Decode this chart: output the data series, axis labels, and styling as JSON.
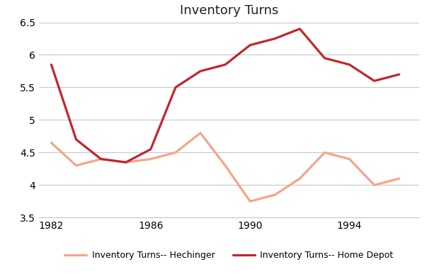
{
  "title": "Inventory Turns",
  "years": [
    1982,
    1983,
    1984,
    1985,
    1986,
    1987,
    1988,
    1989,
    1990,
    1991,
    1992,
    1993,
    1994,
    1995,
    1996
  ],
  "hechinger": [
    4.65,
    4.3,
    4.4,
    4.35,
    4.4,
    4.5,
    4.8,
    4.3,
    3.75,
    3.85,
    4.1,
    4.5,
    4.4,
    4.0,
    4.1
  ],
  "homedepot": [
    5.85,
    4.7,
    4.4,
    4.35,
    4.55,
    5.5,
    5.75,
    5.85,
    6.15,
    6.25,
    6.4,
    5.95,
    5.85,
    5.6,
    5.7
  ],
  "hechinger_color": "#f4a58a",
  "homedepot_color": "#c0272d",
  "background_color": "#ffffff",
  "grid_color": "#c8c8c8",
  "ylim": [
    3.5,
    6.5
  ],
  "yticks": [
    3.5,
    4.0,
    4.5,
    5.0,
    5.5,
    6.0,
    6.5
  ],
  "xticks": [
    1982,
    1986,
    1990,
    1994
  ],
  "xlim": [
    1981.5,
    1996.8
  ],
  "legend_hechinger": "Inventory Turns-- Hechinger",
  "legend_homedepot": "Inventory Turns-- Home Depot",
  "line_width": 2.3,
  "title_fontsize": 13,
  "tick_fontsize": 10,
  "legend_fontsize": 9
}
